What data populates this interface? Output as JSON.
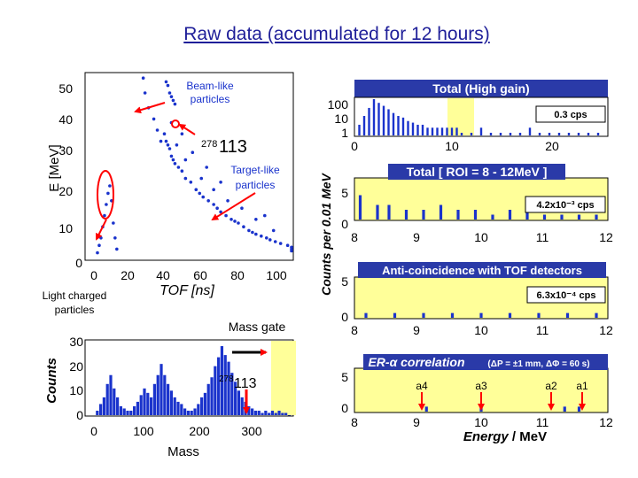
{
  "title": "Raw data (accumulated for 12 hours)",
  "colors": {
    "title": "#1f1f99",
    "points": "#1a33cc",
    "band": "#ffff99",
    "marker": "#ff0000",
    "header": "#2a3aa8"
  },
  "scatter": {
    "ylabel": "E [MeV]",
    "xlabel": "TOF [ns]",
    "xticks": [
      "0",
      "20",
      "40",
      "60",
      "80",
      "100"
    ],
    "yticks": [
      "0",
      "10",
      "20",
      "30",
      "40",
      "50"
    ],
    "annotation_beam": "Beam-like particles",
    "annotation_target": "Target-like particles",
    "annotation_light": "Light charged particles",
    "element_mass": "278",
    "element_z": "113"
  },
  "mass_hist": {
    "ylabel": "Counts",
    "xlabel": "Mass",
    "xticks": [
      "0",
      "100",
      "200",
      "300"
    ],
    "yticks": [
      "0",
      "10",
      "20",
      "30"
    ],
    "gate_label": "Mass gate",
    "element_mass": "278",
    "element_z": "113"
  },
  "energy_panels": {
    "ylabel": "Counts per 0.01 MeV",
    "xlabel_prefix": "Energy",
    "xlabel_suffix": " / MeV",
    "panels": [
      {
        "title": "Total (High gain)",
        "rate": "0.3 cps",
        "yticks": [
          "1",
          "10",
          "100"
        ],
        "xticks": [
          "0",
          "10",
          "20"
        ]
      },
      {
        "title": "Total [ ROI = 8 - 12MeV ]",
        "rate": "4.2x10⁻³ cps",
        "yticks": [
          "0",
          "5"
        ],
        "xticks": [
          "8",
          "9",
          "10",
          "11",
          "12"
        ]
      },
      {
        "title": "Anti-coincidence with TOF detectors",
        "rate": "6.3x10⁻⁴ cps",
        "yticks": [
          "0",
          "5"
        ],
        "xticks": [
          "8",
          "9",
          "10",
          "11",
          "12"
        ]
      },
      {
        "title": "ER-α correlation",
        "title_note": "(ΔP = ±1 mm, ΔΦ = 60 s)",
        "yticks": [
          "0",
          "5"
        ],
        "xticks": [
          "8",
          "9",
          "10",
          "11",
          "12"
        ],
        "alpha_labels": [
          "a4",
          "a3",
          "a2",
          "a1"
        ]
      }
    ]
  },
  "chart_data": [
    {
      "type": "scatter",
      "xlabel": "TOF [ns]",
      "ylabel": "E [MeV]",
      "xlim": [
        0,
        120
      ],
      "ylim": [
        0,
        50
      ],
      "series": [
        {
          "x": [
            40,
            41,
            42,
            43,
            44,
            45,
            46,
            48,
            50,
            52,
            55,
            58,
            60,
            62,
            65,
            68,
            70,
            72,
            75,
            78,
            80,
            82,
            85,
            88,
            90,
            92,
            95,
            98,
            100,
            103,
            106,
            110,
            113,
            116,
            119
          ],
          "y": [
            34,
            32,
            31,
            30,
            28,
            27,
            26,
            25,
            24,
            22,
            21,
            19,
            18,
            17,
            16,
            15,
            14,
            13,
            12,
            11,
            10.5,
            10,
            9,
            8,
            7.5,
            7,
            6.5,
            6,
            5.5,
            5,
            4.5,
            4,
            3.5,
            3,
            2.5
          ]
        },
        {
          "x": [
            28,
            29,
            31,
            34,
            36,
            38,
            44,
            47,
            50,
            52,
            56,
            61,
            64,
            68,
            72,
            76,
            84,
            92,
            97,
            102
          ],
          "y": [
            49,
            45,
            41,
            38,
            35,
            32,
            37,
            31,
            34,
            27,
            29,
            22,
            25,
            19,
            21,
            16,
            14,
            11,
            12,
            8
          ]
        },
        {
          "x": [
            41,
            42,
            43,
            44,
            45,
            46
          ],
          "y": [
            48,
            47,
            45,
            44,
            43,
            42
          ]
        },
        {
          "x": [
            2,
            3,
            4,
            5,
            6,
            7,
            8,
            9,
            10,
            11,
            12,
            13
          ],
          "y": [
            2,
            4,
            6,
            9,
            12,
            15,
            18,
            20,
            16,
            10,
            6,
            3
          ]
        }
      ],
      "annotations": [
        "Beam-like particles",
        "Target-like particles",
        "Light charged particles",
        "278113"
      ]
    },
    {
      "type": "bar",
      "xlabel": "Mass",
      "ylabel": "Counts",
      "xlim": [
        0,
        370
      ],
      "ylim": [
        0,
        33
      ],
      "x": [
        5,
        10,
        15,
        20,
        25,
        30,
        35,
        40,
        45,
        50,
        55,
        60,
        65,
        70,
        75,
        80,
        85,
        90,
        95,
        100,
        105,
        110,
        115,
        120,
        125,
        130,
        135,
        140,
        145,
        150,
        155,
        160,
        165,
        170,
        175,
        180,
        185,
        190,
        195,
        200,
        205,
        210,
        215,
        220,
        225,
        230,
        235,
        240,
        245,
        250,
        255,
        260,
        265,
        270,
        275,
        280,
        285,
        290,
        295,
        300
      ],
      "values": [
        2,
        5,
        8,
        14,
        18,
        12,
        8,
        4,
        3,
        2,
        2,
        4,
        6,
        9,
        12,
        10,
        8,
        14,
        18,
        23,
        18,
        14,
        11,
        8,
        6,
        5,
        3,
        2,
        2,
        3,
        5,
        8,
        10,
        14,
        17,
        22,
        26,
        31,
        27,
        24,
        19,
        15,
        11,
        8,
        6,
        4,
        3,
        2,
        2,
        1,
        2,
        1,
        2,
        1,
        2,
        1,
        1,
        0,
        1,
        0
      ],
      "gate": [
        263,
        300
      ],
      "annotations": [
        "Mass gate",
        "278113"
      ]
    },
    {
      "type": "bar",
      "title": "Total (High gain)",
      "log_y": true,
      "xlim": [
        0,
        26
      ],
      "ylim": [
        1,
        100
      ],
      "x": [
        0.5,
        1,
        1.5,
        2,
        2.5,
        3,
        3.5,
        4,
        4.5,
        5,
        5.5,
        6,
        6.5,
        7,
        7.5,
        8,
        8.5,
        9,
        9.5,
        10,
        10.5,
        11,
        12,
        13,
        14,
        15,
        16,
        17,
        18,
        19,
        20,
        21,
        22,
        23,
        24,
        25
      ],
      "values": [
        3,
        10,
        30,
        100,
        60,
        40,
        25,
        15,
        10,
        8,
        5,
        4,
        3,
        3,
        2,
        2,
        2,
        2,
        2,
        2,
        2,
        1,
        1,
        2,
        1,
        1,
        1,
        1,
        2,
        1,
        1,
        1,
        1,
        1,
        1,
        1
      ],
      "rate": "0.3 cps"
    },
    {
      "type": "bar",
      "title": "Total [ ROI = 8 - 12MeV ]",
      "xlim": [
        7.8,
        12.2
      ],
      "ylim": [
        0,
        8
      ],
      "x": [
        7.9,
        8.2,
        8.4,
        8.7,
        9.0,
        9.3,
        9.6,
        9.9,
        10.2,
        10.5,
        10.8,
        11.1,
        11.4,
        11.7,
        12.0
      ],
      "values": [
        5,
        3,
        3,
        2,
        2,
        3,
        2,
        2,
        1,
        2,
        2,
        1,
        1,
        1,
        1
      ],
      "rate": "4.2x10⁻³ cps"
    },
    {
      "type": "bar",
      "title": "Anti-coincidence with TOF detectors",
      "xlim": [
        7.8,
        12.2
      ],
      "ylim": [
        0,
        8
      ],
      "x": [
        8.0,
        8.5,
        9.0,
        9.5,
        10.0,
        10.5,
        11.0,
        11.5,
        12.0
      ],
      "values": [
        1,
        1,
        1,
        1,
        1,
        1,
        1,
        1,
        1
      ],
      "rate": "6.3x10⁻⁴ cps"
    },
    {
      "type": "bar",
      "title": "ER-α correlation (ΔP = ±1 mm, ΔΦ = 60 s)",
      "xlabel": "Energy / MeV",
      "xlim": [
        7.8,
        12.2
      ],
      "ylim": [
        0,
        8
      ],
      "x": [
        9.05,
        10.0,
        11.45,
        11.7
      ],
      "values": [
        1,
        1,
        1,
        1
      ],
      "annotations": [
        "a4",
        "a3",
        "a2",
        "a1"
      ]
    }
  ]
}
